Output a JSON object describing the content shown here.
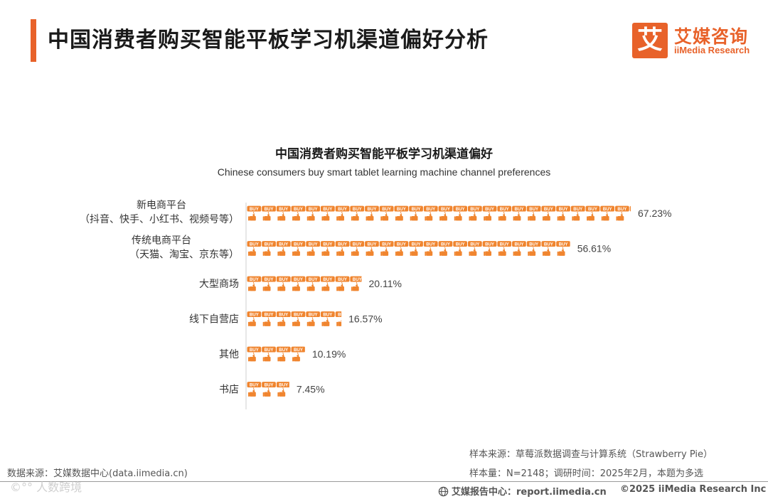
{
  "page_title": "中国消费者购买智能平板学习机渠道偏好分析",
  "logo": {
    "mark": "艾",
    "cn": "艾媒咨询",
    "en": "iiMedia Research"
  },
  "chart_data": {
    "type": "bar",
    "orientation": "horizontal",
    "title": "中国消费者购买智能平板学习机渠道偏好",
    "subtitle": "Chinese consumers buy smart tablet learning machine channel preferences",
    "bar_icon_text": "BUY",
    "bar_color": "#f0852f",
    "categories": [
      {
        "line1": "新电商平台",
        "line2": "（抖音、快手、小红书、视频号等）"
      },
      {
        "line1": "传统电商平台",
        "line2": "（天猫、淘宝、京东等）"
      },
      {
        "line1": "大型商场",
        "line2": ""
      },
      {
        "line1": "线下自营店",
        "line2": ""
      },
      {
        "line1": "其他",
        "line2": ""
      },
      {
        "line1": "书店",
        "line2": ""
      }
    ],
    "values": [
      67.23,
      56.61,
      20.11,
      16.57,
      10.19,
      7.45
    ],
    "value_labels": [
      "67.23%",
      "56.61%",
      "20.11%",
      "16.57%",
      "10.19%",
      "7.45%"
    ],
    "unit": "%"
  },
  "footer": {
    "source_left": "数据来源：艾媒数据中心(data.iimedia.cn)",
    "sample_source": "样本来源：草莓派数据调查与计算系统（Strawberry Pie）",
    "sample_size": "样本量：N=2148；调研时间：2025年2月，本题为多选",
    "report_center": "艾媒报告中心：report.iimedia.cn",
    "copyright": "©2025  iiMedia Research  Inc",
    "watermark": "©°° 人数跨境"
  }
}
